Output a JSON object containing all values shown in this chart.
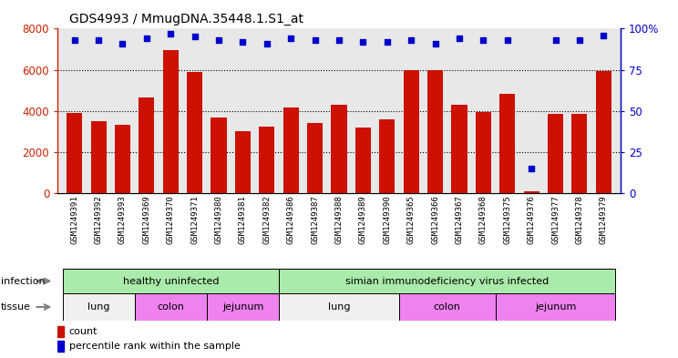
{
  "title": "GDS4993 / MmugDNA.35448.1.S1_at",
  "samples": [
    "GSM1249391",
    "GSM1249392",
    "GSM1249393",
    "GSM1249369",
    "GSM1249370",
    "GSM1249371",
    "GSM1249380",
    "GSM1249381",
    "GSM1249382",
    "GSM1249386",
    "GSM1249387",
    "GSM1249388",
    "GSM1249389",
    "GSM1249390",
    "GSM1249365",
    "GSM1249366",
    "GSM1249367",
    "GSM1249368",
    "GSM1249375",
    "GSM1249376",
    "GSM1249377",
    "GSM1249378",
    "GSM1249379"
  ],
  "counts": [
    3900,
    3500,
    3350,
    4650,
    6950,
    5900,
    3700,
    3000,
    3250,
    4150,
    3400,
    4300,
    3200,
    3600,
    6000,
    6000,
    4300,
    3950,
    4850,
    100,
    3850,
    3850,
    5950
  ],
  "percentiles": [
    93,
    93,
    91,
    94,
    97,
    95,
    93,
    92,
    91,
    94,
    93,
    93,
    92,
    92,
    93,
    91,
    94,
    93,
    93,
    15,
    93,
    93,
    96
  ],
  "bar_color": "#cc1100",
  "dot_color": "#0000cc",
  "ylim_left": [
    0,
    8000
  ],
  "ylim_right": [
    0,
    100
  ],
  "yticks_left": [
    0,
    2000,
    4000,
    6000,
    8000
  ],
  "yticks_right": [
    0,
    25,
    50,
    75,
    100
  ],
  "infection_groups": [
    {
      "label": "healthy uninfected",
      "start": 0,
      "end": 9,
      "color": "#aaeaaa"
    },
    {
      "label": "simian immunodeficiency virus infected",
      "start": 9,
      "end": 23,
      "color": "#aaeaaa"
    }
  ],
  "tissue_groups": [
    {
      "label": "lung",
      "start": 0,
      "end": 3,
      "color": "#f0f0f0"
    },
    {
      "label": "colon",
      "start": 3,
      "end": 6,
      "color": "#ee82ee"
    },
    {
      "label": "jejunum",
      "start": 6,
      "end": 9,
      "color": "#ee82ee"
    },
    {
      "label": "lung",
      "start": 9,
      "end": 14,
      "color": "#f0f0f0"
    },
    {
      "label": "colon",
      "start": 14,
      "end": 18,
      "color": "#ee82ee"
    },
    {
      "label": "jejunum",
      "start": 18,
      "end": 23,
      "color": "#ee82ee"
    }
  ],
  "background_color": "#e8e8e8",
  "left_axis_color": "#cc2200",
  "right_axis_color": "#0000cc",
  "label_arrow_color": "#888888"
}
